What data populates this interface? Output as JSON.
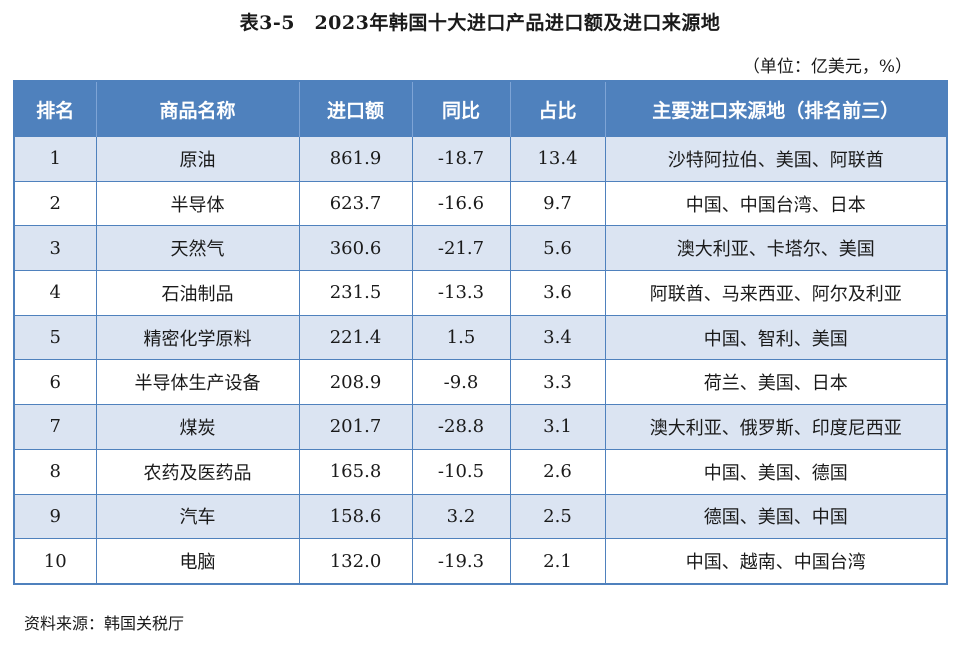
{
  "title": "表3-5　2023年韩国十大进口产品进口额及进口来源地",
  "unit": "（单位：亿美元，%）",
  "columns": [
    "排名",
    "商品名称",
    "进口额",
    "同比",
    "占比",
    "主要进口来源地（排名前三）"
  ],
  "rows": [
    {
      "rank": "1",
      "name": "原油",
      "amount": "861.9",
      "yoy": "-18.7",
      "share": "13.4",
      "sources": "沙特阿拉伯、美国、阿联酋"
    },
    {
      "rank": "2",
      "name": "半导体",
      "amount": "623.7",
      "yoy": "-16.6",
      "share": "9.7",
      "sources": "中国、中国台湾、日本"
    },
    {
      "rank": "3",
      "name": "天然气",
      "amount": "360.6",
      "yoy": "-21.7",
      "share": "5.6",
      "sources": "澳大利亚、卡塔尔、美国"
    },
    {
      "rank": "4",
      "name": "石油制品",
      "amount": "231.5",
      "yoy": "-13.3",
      "share": "3.6",
      "sources": "阿联酋、马来西亚、阿尔及利亚"
    },
    {
      "rank": "5",
      "name": "精密化学原料",
      "amount": "221.4",
      "yoy": "1.5",
      "share": "3.4",
      "sources": "中国、智利、美国"
    },
    {
      "rank": "6",
      "name": "半导体生产设备",
      "amount": "208.9",
      "yoy": "-9.8",
      "share": "3.3",
      "sources": "荷兰、美国、日本"
    },
    {
      "rank": "7",
      "name": "煤炭",
      "amount": "201.7",
      "yoy": "-28.8",
      "share": "3.1",
      "sources": "澳大利亚、俄罗斯、印度尼西亚"
    },
    {
      "rank": "8",
      "name": "农药及医药品",
      "amount": "165.8",
      "yoy": "-10.5",
      "share": "2.6",
      "sources": "中国、美国、德国"
    },
    {
      "rank": "9",
      "name": "汽车",
      "amount": "158.6",
      "yoy": "3.2",
      "share": "2.5",
      "sources": "德国、美国、中国"
    },
    {
      "rank": "10",
      "name": "电脑",
      "amount": "132.0",
      "yoy": "-19.3",
      "share": "2.1",
      "sources": "中国、越南、中国台湾"
    }
  ],
  "source_note": "资料来源：韩国关税厅",
  "colors": {
    "header_bg": "#4f81bd",
    "header_text": "#ffffff",
    "band_row_bg": "#dbe4f2",
    "plain_row_bg": "#ffffff",
    "border": "#4f81bd"
  }
}
